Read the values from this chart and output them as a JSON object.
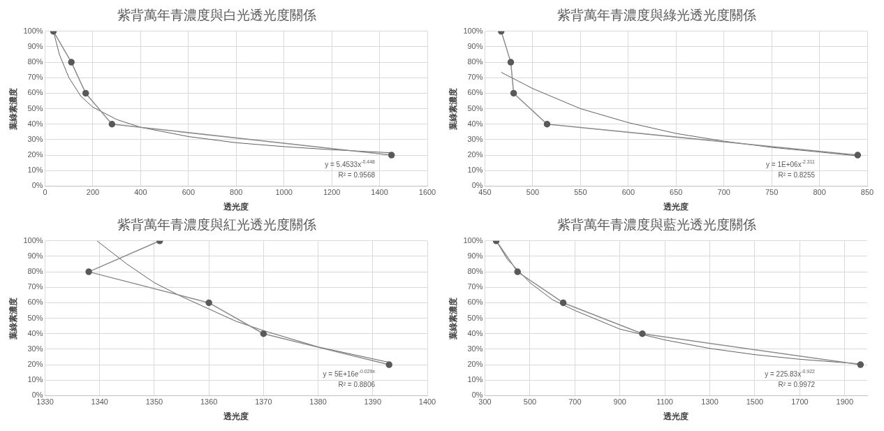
{
  "chart_data": [
    {
      "type": "line",
      "title": "紫背萬年青濃度與白光透光度關係",
      "xlabel": "透光度",
      "ylabel": "葉綠素濃度",
      "xlim": [
        0,
        1600
      ],
      "xticks": [
        0,
        200,
        400,
        600,
        800,
        1000,
        1200,
        1400,
        1600
      ],
      "ylim": [
        0,
        100
      ],
      "yticks": [
        {
          "value": 0,
          "label": "0%"
        },
        {
          "value": 10,
          "label": "10%"
        },
        {
          "value": 20,
          "label": "20%"
        },
        {
          "value": 30,
          "label": "30%"
        },
        {
          "value": 40,
          "label": "40%"
        },
        {
          "value": 50,
          "label": "50%"
        },
        {
          "value": 60,
          "label": "60%"
        },
        {
          "value": 70,
          "label": "70%"
        },
        {
          "value": 80,
          "label": "80%"
        },
        {
          "value": 90,
          "label": "90%"
        },
        {
          "value": 100,
          "label": "100%"
        }
      ],
      "grid": true,
      "legend": false,
      "series": [
        {
          "type": "line",
          "color": "#8c8c8c",
          "marker": "circle",
          "x": [
            35,
            110,
            170,
            280,
            1450
          ],
          "values": [
            100,
            80,
            60,
            40,
            20
          ]
        },
        {
          "type": "line",
          "color": "#606060",
          "marker": "none",
          "x": [
            35,
            60,
            100,
            150,
            200,
            300,
            400,
            600,
            800,
            1000,
            1200,
            1450
          ],
          "values": [
            100,
            85,
            70,
            58,
            51,
            43,
            38,
            32,
            28,
            25.5,
            23.5,
            21.5
          ]
        }
      ],
      "annotations": [
        "y = 5.4533x$^{-0.448}$",
        "R² = 0.9568"
      ]
    },
    {
      "type": "line",
      "title": "紫背萬年青濃度與綠光透光度關係",
      "xlabel": "透光度",
      "ylabel": "葉綠素濃度",
      "xlim": [
        450,
        850
      ],
      "xticks": [
        450,
        500,
        550,
        600,
        650,
        700,
        750,
        800,
        850
      ],
      "ylim": [
        0,
        100
      ],
      "yticks": [
        {
          "value": 0,
          "label": "0%"
        },
        {
          "value": 10,
          "label": "10%"
        },
        {
          "value": 20,
          "label": "20%"
        },
        {
          "value": 30,
          "label": "30%"
        },
        {
          "value": 40,
          "label": "40%"
        },
        {
          "value": 50,
          "label": "50%"
        },
        {
          "value": 60,
          "label": "60%"
        },
        {
          "value": 70,
          "label": "70%"
        },
        {
          "value": 80,
          "label": "80%"
        },
        {
          "value": 90,
          "label": "90%"
        },
        {
          "value": 100,
          "label": "100%"
        }
      ],
      "grid": true,
      "legend": false,
      "series": [
        {
          "type": "line",
          "color": "#8c8c8c",
          "marker": "circle",
          "x": [
            467,
            477,
            480,
            515,
            840
          ],
          "values": [
            100,
            80,
            60,
            40,
            20
          ]
        },
        {
          "type": "line",
          "color": "#606060",
          "marker": "none",
          "x": [
            467,
            500,
            550,
            600,
            650,
            700,
            750,
            800,
            840
          ],
          "values": [
            73.5,
            63,
            50,
            41,
            34,
            29,
            25,
            22,
            19.5
          ]
        }
      ],
      "annotations": [
        "y = 1E+06x$^{-2.311}$",
        "R² = 0.8255"
      ]
    },
    {
      "type": "line",
      "title": "紫背萬年青濃度與紅光透光度關係",
      "xlabel": "透光度",
      "ylabel": "葉綠素濃度",
      "xlim": [
        1330,
        1400
      ],
      "xticks": [
        1330,
        1340,
        1350,
        1360,
        1370,
        1380,
        1390,
        1400
      ],
      "ylim": [
        0,
        100
      ],
      "yticks": [
        {
          "value": 0,
          "label": "0%"
        },
        {
          "value": 10,
          "label": "10%"
        },
        {
          "value": 20,
          "label": "20%"
        },
        {
          "value": 30,
          "label": "30%"
        },
        {
          "value": 40,
          "label": "40%"
        },
        {
          "value": 50,
          "label": "50%"
        },
        {
          "value": 60,
          "label": "60%"
        },
        {
          "value": 70,
          "label": "70%"
        },
        {
          "value": 80,
          "label": "80%"
        },
        {
          "value": 90,
          "label": "90%"
        },
        {
          "value": 100,
          "label": "100%"
        }
      ],
      "grid": true,
      "legend": false,
      "series": [
        {
          "type": "line",
          "color": "#8c8c8c",
          "marker": "circle",
          "x": [
            1351,
            1338,
            1360,
            1370,
            1393
          ],
          "values": [
            100,
            80,
            60,
            40,
            20
          ]
        },
        {
          "type": "line",
          "color": "#606060",
          "marker": "none",
          "x": [
            1339.5,
            1345,
            1350,
            1355,
            1360,
            1365,
            1370,
            1380,
            1393
          ],
          "values": [
            100,
            85,
            73,
            64,
            56,
            48,
            42,
            31.5,
            21.5
          ]
        }
      ],
      "annotations": [
        "y = 5E+16e$^{-0.029x}$",
        "R² = 0.8806"
      ]
    },
    {
      "type": "line",
      "title": "紫背萬年青濃度與藍光透光度關係",
      "xlabel": "透光度",
      "ylabel": "葉綠素濃度",
      "xlim": [
        300,
        2000
      ],
      "xticks": [
        300,
        500,
        700,
        900,
        1100,
        1300,
        1500,
        1700,
        1900
      ],
      "ylim": [
        0,
        100
      ],
      "yticks": [
        {
          "value": 0,
          "label": "0%"
        },
        {
          "value": 10,
          "label": "10%"
        },
        {
          "value": 20,
          "label": "20%"
        },
        {
          "value": 30,
          "label": "30%"
        },
        {
          "value": 40,
          "label": "40%"
        },
        {
          "value": 50,
          "label": "50%"
        },
        {
          "value": 60,
          "label": "60%"
        },
        {
          "value": 70,
          "label": "70%"
        },
        {
          "value": 80,
          "label": "80%"
        },
        {
          "value": 90,
          "label": "90%"
        },
        {
          "value": 100,
          "label": "100%"
        }
      ],
      "grid": true,
      "legend": false,
      "series": [
        {
          "type": "line",
          "color": "#8c8c8c",
          "marker": "circle",
          "x": [
            350,
            445,
            648,
            1000,
            1970
          ],
          "values": [
            100,
            80,
            60,
            40,
            20
          ]
        },
        {
          "type": "line",
          "color": "#606060",
          "marker": "none",
          "x": [
            350,
            400,
            500,
            600,
            700,
            900,
            1100,
            1300,
            1500,
            1700,
            1970
          ],
          "values": [
            100,
            88,
            73,
            62,
            55,
            43,
            36,
            30.5,
            26.5,
            23.5,
            20.5
          ]
        }
      ],
      "annotations": [
        "y = 225.83x$^{-0.922}$",
        "R² = 0.9972"
      ]
    }
  ]
}
